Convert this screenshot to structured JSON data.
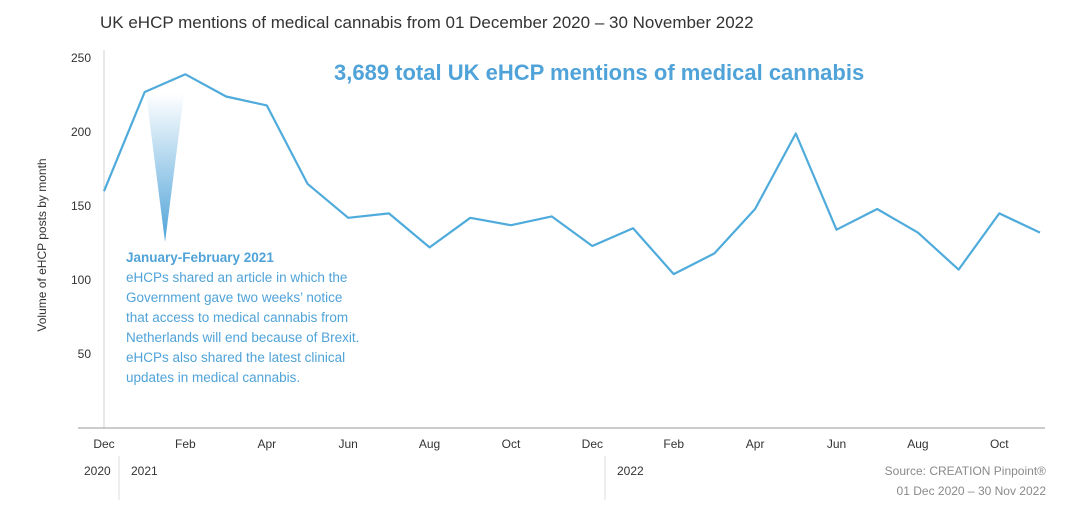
{
  "chart_data": {
    "type": "line",
    "title": "UK eHCP mentions of medical cannabis from 01 December 2020 – 30 November 2022",
    "headline": "3,689 total UK eHCP mentions of medical cannabis",
    "ylabel": "Volume of eHCP posts by month",
    "ylim": [
      0,
      250
    ],
    "yticks": [
      "50",
      "100",
      "150",
      "200",
      "250"
    ],
    "x_tick_labels": [
      "Dec",
      "Feb",
      "Apr",
      "Jun",
      "Aug",
      "Oct",
      "Dec",
      "Feb",
      "Apr",
      "Jun",
      "Aug",
      "Oct"
    ],
    "year_labels": [
      "2020",
      "2021",
      "2022"
    ],
    "x": [
      "Dec 2020",
      "Jan 2021",
      "Feb 2021",
      "Mar 2021",
      "Apr 2021",
      "May 2021",
      "Jun 2021",
      "Jul 2021",
      "Aug 2021",
      "Sep 2021",
      "Oct 2021",
      "Nov 2021",
      "Dec 2021",
      "Jan 2022",
      "Feb 2022",
      "Mar 2022",
      "Apr 2022",
      "May 2022",
      "Jun 2022",
      "Jul 2022",
      "Aug 2022",
      "Sep 2022",
      "Oct 2022",
      "Nov 2022"
    ],
    "values": [
      160,
      227,
      239,
      224,
      218,
      165,
      142,
      145,
      122,
      142,
      137,
      143,
      123,
      135,
      104,
      118,
      148,
      199,
      134,
      148,
      132,
      107,
      145,
      132
    ],
    "grid": false,
    "legend": "none",
    "annotation": {
      "target": "Feb 2021",
      "heading": "January-February 2021",
      "lines": [
        "eHCPs shared an article in which the",
        "Government gave two weeks’ notice",
        "that access to medical cannabis from",
        "Netherlands will end because of Brexit.",
        "eHCPs also shared the latest clinical",
        "updates in medical cannabis."
      ]
    },
    "source_lines": [
      "Source: CREATION Pinpoint®",
      "01 Dec 2020 – 30 Nov 2022"
    ]
  },
  "colors": {
    "line": "#4FABDB",
    "accent": "#4FA3D8",
    "axis": "#999999",
    "text": "#333333",
    "muted": "#8a8a8a"
  }
}
